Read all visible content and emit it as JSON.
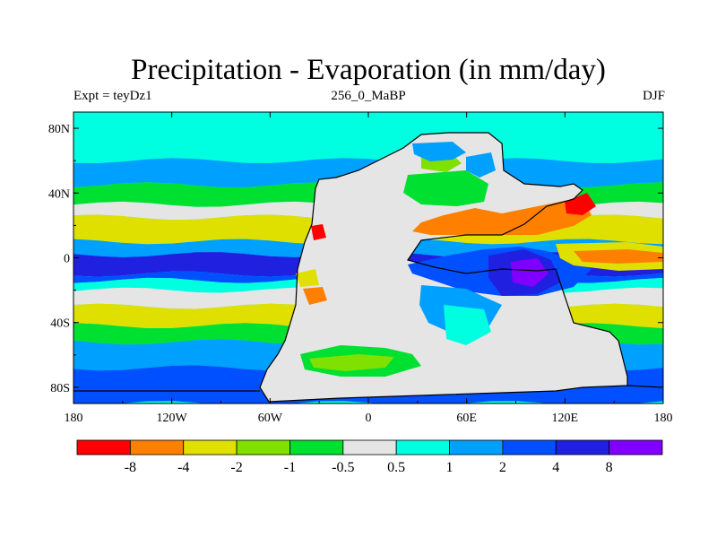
{
  "header": {
    "title": "Precipitation - Evaporation (in mm/day)",
    "left_label": "Expt = teyDz1",
    "center_label": "256_0_MaBP",
    "right_label": "DJF"
  },
  "chart_data": {
    "type": "heatmap",
    "title": "Precipitation - Evaporation (in mm/day)",
    "x_ticks": [
      "180",
      "120W",
      "60W",
      "0",
      "60E",
      "120E",
      "180"
    ],
    "x_tick_values": [
      -180,
      -120,
      -60,
      0,
      60,
      120,
      180
    ],
    "y_ticks": [
      "80N",
      "40N",
      "0",
      "40S",
      "80S"
    ],
    "y_tick_values": [
      80,
      40,
      0,
      -40,
      -80
    ],
    "xlim": [
      -180,
      180
    ],
    "ylim": [
      -90,
      90
    ],
    "colorbar": {
      "colors": [
        "#ff0000",
        "#ff8000",
        "#e0e000",
        "#80e000",
        "#00e030",
        "#e5e5e5",
        "#00ffe0",
        "#00a0ff",
        "#0050ff",
        "#2020e0",
        "#8000ff"
      ],
      "labels": [
        "-8",
        "-4",
        "-2",
        "-1",
        "-0.5",
        "0.5",
        "1",
        "2",
        "4",
        "8"
      ]
    },
    "zonal_bands": [
      {
        "lat": [
          60,
          90
        ],
        "class": 6
      },
      {
        "lat": [
          45,
          60
        ],
        "class": 7
      },
      {
        "lat": [
          33,
          45
        ],
        "class": 4
      },
      {
        "lat": [
          25,
          33
        ],
        "class": 5
      },
      {
        "lat": [
          10,
          25
        ],
        "class": 2
      },
      {
        "lat": [
          2,
          10
        ],
        "class": 7
      },
      {
        "lat": [
          -10,
          2
        ],
        "class": 9
      },
      {
        "lat": [
          -14,
          -10
        ],
        "class": 8
      },
      {
        "lat": [
          -20,
          -14
        ],
        "class": 6
      },
      {
        "lat": [
          -30,
          -20
        ],
        "class": 5
      },
      {
        "lat": [
          -42,
          -30
        ],
        "class": 2
      },
      {
        "lat": [
          -52,
          -42
        ],
        "class": 4
      },
      {
        "lat": [
          -68,
          -52
        ],
        "class": 7
      },
      {
        "lat": [
          -90,
          -68
        ],
        "class": 8
      }
    ]
  }
}
